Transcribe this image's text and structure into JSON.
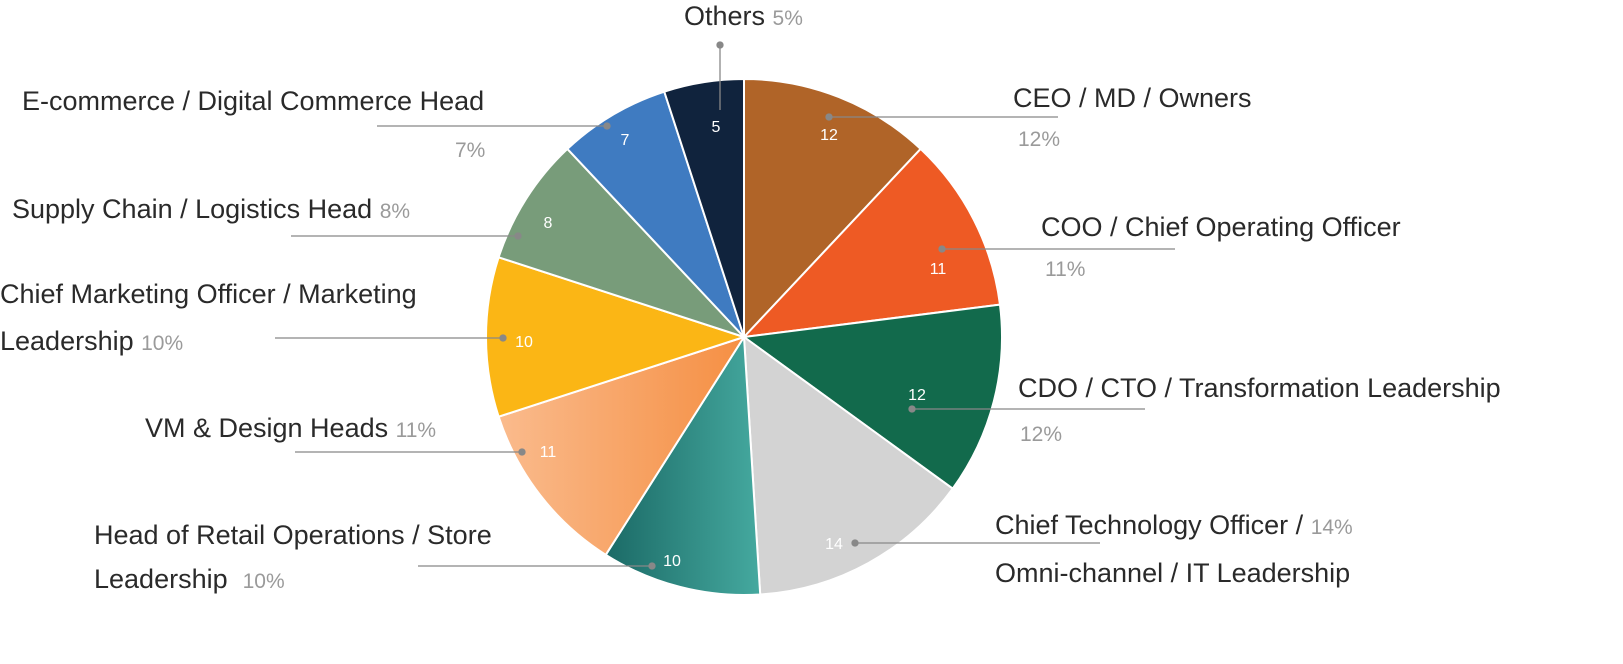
{
  "chart_data": {
    "type": "pie",
    "title": "",
    "start": "top",
    "direction": "clockwise",
    "slices": [
      {
        "label": "CEO / MD / Owners",
        "value": 12,
        "pct": "12%",
        "color": "#B06428"
      },
      {
        "label": "COO / Chief Operating Officer",
        "value": 11,
        "pct": "11%",
        "color": "#EE5A24"
      },
      {
        "label": "CDO / CTO / Transformation Leadership",
        "value": 12,
        "pct": "12%",
        "color": "#126A4C"
      },
      {
        "label": "Chief Technology Officer / Omni-channel / IT Leadership",
        "label_line1": "Chief Technology Officer /",
        "label_line2": "Omni-channel / IT Leadership",
        "value": 14,
        "pct": "14%",
        "color": "#D3D3D3"
      },
      {
        "label": "Head of Retail Operations / Store Leadership",
        "label_line1": "Head of Retail Operations / Store",
        "label_line2": "Leadership",
        "value": 10,
        "pct": "10%",
        "color": "#2E8A80",
        "gradient": [
          "#1B6A66",
          "#45A99F"
        ]
      },
      {
        "label": "VM & Design Heads",
        "value": 11,
        "pct": "11%",
        "color": "#F7A466",
        "gradient": [
          "#FABB8D",
          "#F58F43"
        ]
      },
      {
        "label": "Chief Marketing Officer / Marketing Leadership",
        "label_line1": "Chief Marketing Officer / Marketing",
        "label_line2": "Leadership",
        "value": 10,
        "pct": "10%",
        "color": "#FBB615"
      },
      {
        "label": "Supply Chain / Logistics Head",
        "value": 8,
        "pct": "8%",
        "color": "#789C7A"
      },
      {
        "label": "E-commerce / Digital Commerce Head",
        "value": 7,
        "pct": "7%",
        "color": "#3F7BC1"
      },
      {
        "label": "Others",
        "value": 5,
        "pct": "5%",
        "color": "#10233D"
      }
    ]
  }
}
